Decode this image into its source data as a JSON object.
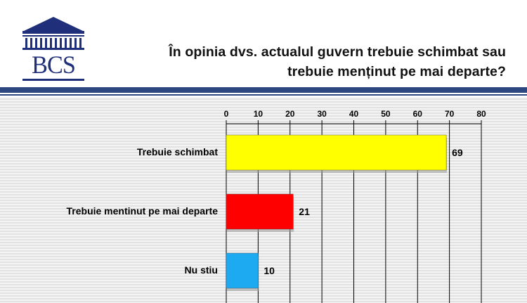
{
  "header": {
    "logo_text": "BCS",
    "title_line1": "În opinia dvs. actualul guvern trebuie schimbat sau",
    "title_line2": "trebuie menținut pe mai departe?"
  },
  "colors": {
    "accent": "#2d4780",
    "logo": "#1f2f7a"
  },
  "chart_data": {
    "type": "bar",
    "orientation": "horizontal",
    "title": "În opinia dvs. actualul guvern trebuie schimbat sau trebuie menținut pe mai departe?",
    "categories": [
      "Trebuie schimbat",
      "Trebuie mentinut pe mai departe",
      "Nu stiu"
    ],
    "values": [
      69,
      21,
      10
    ],
    "bar_colors": [
      "#ffff00",
      "#ff0000",
      "#1eaaf1"
    ],
    "data_labels": [
      "69",
      "21",
      "10"
    ],
    "x_ticks": [
      "0",
      "10",
      "20",
      "30",
      "40",
      "50",
      "60",
      "70",
      "80"
    ],
    "xlim": [
      0,
      80
    ],
    "axis_position": "top",
    "grid": true,
    "legend": "none"
  }
}
